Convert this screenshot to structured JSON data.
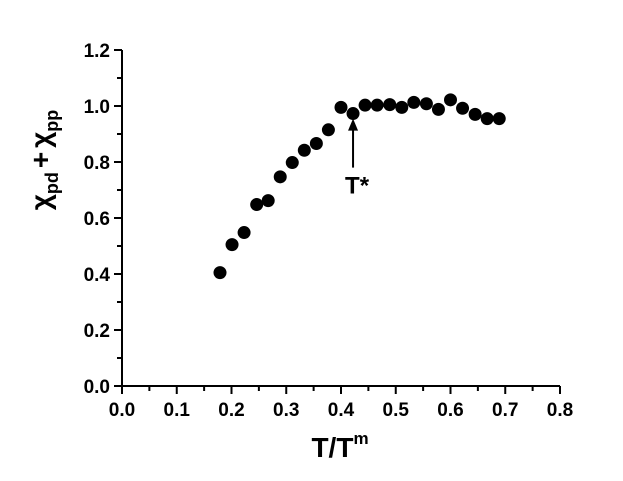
{
  "chart_data": {
    "type": "scatter",
    "title": "",
    "xlabel": {
      "base": "T/T",
      "sup": "m"
    },
    "ylabel": {
      "sym1": "χ",
      "sub1": "pd",
      "plus": "+",
      "sym2": "χ",
      "sub2": "pp"
    },
    "xlim": [
      0.0,
      0.8
    ],
    "ylim": [
      0.0,
      1.2
    ],
    "xticks": [
      "0.0",
      "0.1",
      "0.2",
      "0.3",
      "0.4",
      "0.5",
      "0.6",
      "0.7",
      "0.8"
    ],
    "yticks": [
      "0.0",
      "0.2",
      "0.4",
      "0.6",
      "0.8",
      "1.0",
      "1.2"
    ],
    "grid": false,
    "marker_color": "#000000",
    "series": [
      {
        "points": [
          [
            0.179,
            0.405
          ],
          [
            0.201,
            0.505
          ],
          [
            0.223,
            0.548
          ],
          [
            0.246,
            0.648
          ],
          [
            0.267,
            0.662
          ],
          [
            0.289,
            0.747
          ],
          [
            0.311,
            0.798
          ],
          [
            0.333,
            0.842
          ],
          [
            0.355,
            0.866
          ],
          [
            0.377,
            0.915
          ],
          [
            0.4,
            0.995
          ],
          [
            0.422,
            0.973
          ],
          [
            0.444,
            1.003
          ],
          [
            0.466,
            1.003
          ],
          [
            0.489,
            1.005
          ],
          [
            0.511,
            0.995
          ],
          [
            0.533,
            1.013
          ],
          [
            0.556,
            1.008
          ],
          [
            0.578,
            0.988
          ],
          [
            0.6,
            1.022
          ],
          [
            0.622,
            0.992
          ],
          [
            0.645,
            0.97
          ],
          [
            0.667,
            0.955
          ],
          [
            0.689,
            0.955
          ]
        ]
      }
    ],
    "annotation": {
      "text": "T*",
      "x": 0.422,
      "y_from": 0.78,
      "y_to": 0.955
    }
  }
}
